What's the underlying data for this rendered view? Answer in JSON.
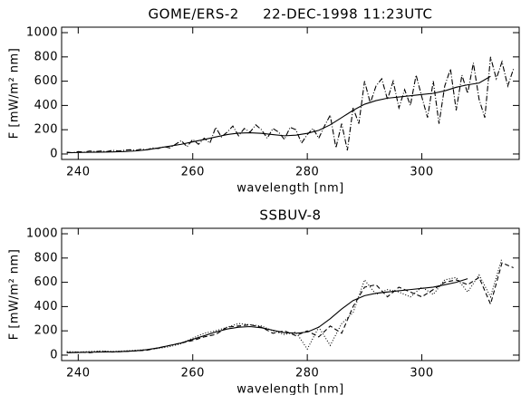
{
  "chart_data": [
    {
      "type": "line",
      "title": "GOME/ERS-2     22-DEC-1998 11:23UTC",
      "x_label": "wavelength [nm]",
      "y_label": "F [mW/m² nm]",
      "xlim": [
        237.1,
        317
      ],
      "xticks": [
        240,
        260,
        280,
        300
      ],
      "ylim": [
        -45,
        1045
      ],
      "yticks": [
        0,
        200,
        400,
        600,
        800,
        1000
      ],
      "series": [
        {
          "color": "#000000",
          "dash": "solid",
          "x": [
            238,
            240,
            242,
            244,
            246,
            248,
            250,
            252,
            254,
            256,
            258,
            260,
            262,
            264,
            266,
            268,
            270,
            272,
            274,
            276,
            278,
            280,
            282,
            284,
            286,
            288,
            290,
            292,
            294,
            296,
            298,
            300,
            302,
            304,
            306,
            308,
            310,
            312
          ],
          "values": [
            10,
            12,
            14,
            15,
            17,
            20,
            25,
            35,
            50,
            65,
            80,
            100,
            120,
            140,
            160,
            172,
            175,
            170,
            160,
            150,
            155,
            170,
            195,
            240,
            300,
            360,
            410,
            440,
            460,
            470,
            480,
            490,
            500,
            520,
            550,
            570,
            585,
            640
          ]
        },
        {
          "color": "#000000",
          "dash": "dashdot",
          "x": [
            238,
            239,
            240,
            241,
            242,
            243,
            244,
            245,
            246,
            247,
            248,
            249,
            250,
            251,
            252,
            253,
            254,
            255,
            256,
            257,
            258,
            259,
            260,
            261,
            262,
            263,
            264,
            265,
            266,
            267,
            268,
            269,
            270,
            271,
            272,
            273,
            274,
            275,
            276,
            277,
            278,
            279,
            280,
            281,
            282,
            283,
            284,
            285,
            286,
            287,
            288,
            289,
            290,
            291,
            292,
            293,
            294,
            295,
            296,
            297,
            298,
            299,
            300,
            301,
            302,
            303,
            304,
            305,
            306,
            307,
            308,
            309,
            310,
            311,
            312,
            313,
            314,
            315,
            316
          ],
          "values": [
            15,
            10,
            20,
            15,
            25,
            20,
            25,
            20,
            30,
            25,
            30,
            35,
            30,
            40,
            35,
            50,
            45,
            60,
            50,
            80,
            110,
            60,
            120,
            80,
            130,
            90,
            220,
            140,
            180,
            230,
            150,
            210,
            180,
            240,
            200,
            130,
            210,
            180,
            120,
            220,
            200,
            90,
            160,
            210,
            130,
            230,
            320,
            50,
            250,
            30,
            380,
            250,
            600,
            420,
            560,
            620,
            450,
            600,
            380,
            530,
            400,
            650,
            470,
            300,
            600,
            250,
            560,
            700,
            360,
            650,
            500,
            750,
            450,
            300,
            800,
            620,
            760,
            560,
            700
          ]
        }
      ]
    },
    {
      "type": "line",
      "title": "SSBUV-8",
      "x_label": "wavelength [nm]",
      "y_label": "F [mW/m² nm]",
      "xlim": [
        237.1,
        317
      ],
      "xticks": [
        240,
        260,
        280,
        300
      ],
      "ylim": [
        -45,
        1045
      ],
      "yticks": [
        0,
        200,
        400,
        600,
        800,
        1000
      ],
      "series": [
        {
          "color": "#000000",
          "dash": "solid",
          "x": [
            238,
            240,
            242,
            244,
            246,
            248,
            250,
            252,
            254,
            256,
            258,
            260,
            262,
            264,
            266,
            268,
            270,
            272,
            274,
            276,
            278,
            280,
            282,
            284,
            286,
            288,
            290,
            292,
            294,
            296,
            298,
            300,
            302,
            304,
            306,
            308
          ],
          "values": [
            20,
            22,
            24,
            25,
            27,
            30,
            35,
            45,
            60,
            80,
            100,
            130,
            160,
            190,
            215,
            230,
            235,
            225,
            205,
            185,
            180,
            190,
            230,
            300,
            380,
            450,
            490,
            510,
            520,
            530,
            540,
            550,
            560,
            580,
            600,
            630
          ]
        },
        {
          "color": "#000000",
          "dash": "dotted",
          "x": [
            238,
            240,
            242,
            244,
            246,
            248,
            250,
            252,
            254,
            256,
            258,
            260,
            262,
            264,
            266,
            268,
            270,
            272,
            274,
            276,
            278,
            280,
            282,
            284,
            286,
            288,
            290,
            292,
            294,
            296,
            298,
            300,
            302,
            304,
            306,
            308,
            310,
            312,
            314
          ],
          "values": [
            30,
            25,
            30,
            35,
            30,
            35,
            40,
            45,
            55,
            70,
            95,
            140,
            180,
            200,
            230,
            260,
            250,
            240,
            200,
            170,
            190,
            50,
            230,
            80,
            260,
            350,
            620,
            500,
            540,
            520,
            480,
            560,
            500,
            620,
            640,
            520,
            660,
            480,
            800
          ]
        },
        {
          "color": "#000000",
          "dash": "dashed",
          "x": [
            238,
            240,
            242,
            244,
            246,
            248,
            250,
            252,
            254,
            256,
            258,
            260,
            262,
            264,
            266,
            268,
            270,
            272,
            274,
            276,
            278,
            280,
            282,
            284,
            286,
            288,
            290,
            292,
            294,
            296,
            298,
            300,
            302,
            304,
            306,
            308,
            310,
            312,
            314,
            316
          ],
          "values": [
            20,
            25,
            20,
            30,
            25,
            30,
            35,
            40,
            60,
            80,
            100,
            120,
            150,
            170,
            230,
            240,
            250,
            230,
            180,
            200,
            160,
            200,
            150,
            240,
            180,
            400,
            560,
            580,
            480,
            560,
            520,
            480,
            540,
            600,
            620,
            580,
            640,
            420,
            760,
            720
          ]
        }
      ]
    }
  ]
}
